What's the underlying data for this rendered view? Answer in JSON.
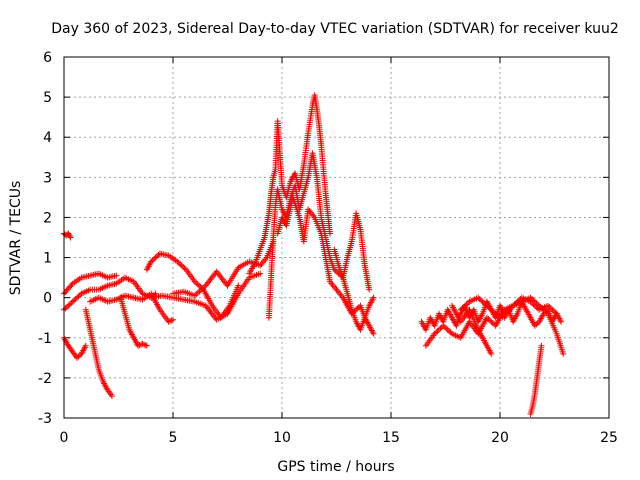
{
  "chart_data": {
    "type": "scatter",
    "title": "Day 360 of 2023, Sidereal Day-to-day VTEC variation (SDTVAR) for receiver kuu2",
    "xlabel": "GPS time / hours",
    "ylabel": "SDTVAR / TECUs",
    "xlim": [
      0,
      25
    ],
    "ylim": [
      -3,
      6
    ],
    "grid": true,
    "marker": "plus",
    "x_ticks": [
      "0",
      "5",
      "10",
      "15",
      "20",
      "25"
    ],
    "y_ticks": [
      "-3",
      "-2",
      "-1",
      "0",
      "1",
      "2",
      "3",
      "4",
      "5",
      "6"
    ],
    "series": [
      {
        "name": "SDTVAR",
        "color": "#ff0000",
        "tracks": [
          {
            "x": [
              0.0,
              0.1,
              0.2,
              0.3
            ],
            "y": [
              1.6,
              1.55,
              1.6,
              1.5
            ]
          },
          {
            "x": [
              0.0,
              0.2,
              0.4,
              0.6,
              0.8,
              1.0
            ],
            "y": [
              -1.0,
              -1.2,
              -1.35,
              -1.5,
              -1.4,
              -1.2
            ]
          },
          {
            "x": [
              0.0,
              0.4,
              0.8,
              1.2,
              1.6,
              2.0,
              2.4
            ],
            "y": [
              0.1,
              0.35,
              0.5,
              0.55,
              0.6,
              0.5,
              0.55
            ]
          },
          {
            "x": [
              0.0,
              0.4,
              0.8,
              1.2,
              1.6,
              2.0,
              2.4,
              2.8,
              3.2,
              3.6,
              4.0,
              4.2
            ],
            "y": [
              -0.3,
              -0.1,
              0.1,
              0.2,
              0.2,
              0.3,
              0.35,
              0.5,
              0.4,
              0.1,
              0.0,
              0.1
            ]
          },
          {
            "x": [
              1.0,
              1.2,
              1.4,
              1.6,
              1.8,
              2.0,
              2.2
            ],
            "y": [
              -0.3,
              -0.8,
              -1.3,
              -1.8,
              -2.1,
              -2.3,
              -2.45
            ]
          },
          {
            "x": [
              1.2,
              1.6,
              2.0,
              2.4,
              2.8,
              3.2,
              3.6,
              4.0,
              4.4,
              4.8,
              5.0
            ],
            "y": [
              -0.1,
              0.0,
              -0.1,
              -0.05,
              0.05,
              0.0,
              -0.05,
              0.1,
              -0.3,
              -0.6,
              -0.55
            ]
          },
          {
            "x": [
              2.6,
              2.8,
              3.0,
              3.2,
              3.4,
              3.6,
              3.8
            ],
            "y": [
              0.0,
              -0.4,
              -0.8,
              -1.0,
              -1.2,
              -1.15,
              -1.2
            ]
          },
          {
            "x": [
              3.8,
              4.0,
              4.4,
              4.8,
              5.2,
              5.6,
              6.0,
              6.4,
              6.8,
              7.2,
              7.6,
              8.0
            ],
            "y": [
              0.7,
              0.9,
              1.1,
              1.05,
              0.9,
              0.7,
              0.4,
              0.2,
              -0.2,
              -0.5,
              -0.2,
              0.3
            ]
          },
          {
            "x": [
              4.0,
              4.5,
              5.0,
              5.5,
              6.0,
              6.5,
              7.0,
              7.5,
              8.0,
              8.5,
              9.0
            ],
            "y": [
              0.0,
              0.05,
              0.0,
              -0.05,
              -0.1,
              -0.2,
              -0.55,
              -0.4,
              0.1,
              0.5,
              0.6
            ]
          },
          {
            "x": [
              5.0,
              5.5,
              6.0,
              6.5,
              7.0,
              7.5,
              8.0,
              8.5,
              9.0,
              9.3,
              9.6
            ],
            "y": [
              0.1,
              0.15,
              0.05,
              0.3,
              0.65,
              0.3,
              0.75,
              0.9,
              0.8,
              1.0,
              1.4
            ]
          },
          {
            "x": [
              8.5,
              8.8,
              9.0,
              9.2,
              9.4,
              9.5,
              9.6,
              9.7,
              9.8,
              9.9,
              10.0,
              10.2,
              10.4,
              10.6,
              10.8,
              11.0,
              11.2,
              11.4,
              11.5,
              11.6,
              11.7,
              11.8,
              11.9,
              12.0,
              12.1,
              12.2
            ],
            "y": [
              0.6,
              0.9,
              1.2,
              1.5,
              2.1,
              2.6,
              3.0,
              3.2,
              4.4,
              3.6,
              2.8,
              2.5,
              2.9,
              3.1,
              2.7,
              3.3,
              4.1,
              4.8,
              5.05,
              4.7,
              4.3,
              3.8,
              3.2,
              2.6,
              2.1,
              1.6
            ]
          },
          {
            "x": [
              9.4,
              9.5,
              9.6,
              9.7,
              9.8,
              10.0,
              10.2,
              10.4,
              10.6,
              10.8,
              11.0,
              11.2,
              11.4,
              11.6,
              11.8,
              12.0,
              12.2,
              12.4,
              12.6,
              12.8,
              13.0,
              13.2,
              13.4,
              13.6,
              13.8,
              14.0,
              14.2
            ],
            "y": [
              -0.5,
              0.5,
              1.5,
              2.3,
              2.7,
              2.2,
              2.0,
              2.5,
              2.8,
              2.2,
              2.6,
              3.0,
              3.6,
              3.0,
              2.0,
              1.5,
              1.0,
              0.7,
              0.6,
              0.5,
              0.1,
              -0.3,
              -0.6,
              -0.8,
              -0.5,
              -0.2,
              0.0
            ]
          },
          {
            "x": [
              9.8,
              10.0,
              10.2,
              10.5,
              10.8,
              11.0,
              11.2,
              11.5,
              11.8,
              12.0,
              12.2,
              12.5,
              12.8,
              13.0,
              13.2,
              13.4,
              13.6,
              13.8,
              14.0,
              14.2
            ],
            "y": [
              1.6,
              2.0,
              1.8,
              2.5,
              2.0,
              1.4,
              2.2,
              2.0,
              1.6,
              1.0,
              0.4,
              0.2,
              0.0,
              -0.2,
              -0.4,
              -0.3,
              -0.2,
              -0.5,
              -0.7,
              -0.9
            ]
          },
          {
            "x": [
              12.4,
              12.6,
              12.8,
              13.0,
              13.2,
              13.4,
              13.6,
              13.8,
              14.0
            ],
            "y": [
              1.2,
              0.8,
              0.5,
              1.0,
              1.4,
              2.1,
              1.7,
              0.8,
              0.2
            ]
          },
          {
            "x": [
              16.4,
              16.6,
              16.8,
              17.0,
              17.2,
              17.4,
              17.6,
              17.8,
              18.0,
              18.2,
              18.4,
              18.6,
              18.8,
              19.0,
              19.2,
              19.4,
              19.6,
              19.8,
              20.0,
              20.2,
              20.4,
              20.6,
              20.8,
              21.0,
              21.2,
              21.4,
              21.6,
              21.8,
              22.0,
              22.2,
              22.4,
              22.6,
              22.8
            ],
            "y": [
              -0.6,
              -0.8,
              -0.5,
              -0.7,
              -0.4,
              -0.6,
              -0.3,
              -0.5,
              -0.7,
              -0.4,
              -0.2,
              -0.5,
              -0.3,
              -0.6,
              -0.4,
              -0.1,
              -0.3,
              -0.5,
              -0.2,
              -0.4,
              -0.3,
              -0.6,
              -0.4,
              -0.1,
              -0.3,
              -0.5,
              -0.7,
              -0.6,
              -0.4,
              -0.3,
              -0.6,
              -0.4,
              -0.6
            ]
          },
          {
            "x": [
              16.6,
              17.0,
              17.4,
              17.8,
              18.2,
              18.6,
              19.0,
              19.4,
              19.8,
              20.2,
              20.6,
              21.0,
              21.4,
              21.8,
              22.2,
              22.6,
              22.9
            ],
            "y": [
              -1.2,
              -0.9,
              -0.7,
              -0.9,
              -1.0,
              -0.6,
              -0.9,
              -0.5,
              -0.7,
              -0.3,
              -0.2,
              -0.1,
              0.0,
              -0.2,
              -0.4,
              -0.9,
              -1.4
            ]
          },
          {
            "x": [
              17.8,
              18.2,
              18.6,
              19.0,
              19.4,
              19.6
            ],
            "y": [
              -0.2,
              -0.6,
              -0.3,
              -0.8,
              -1.2,
              -1.4
            ]
          },
          {
            "x": [
              18.2,
              18.6,
              19.0,
              19.4,
              19.8,
              20.2,
              20.6,
              21.0,
              21.4,
              21.8,
              22.2,
              22.6
            ],
            "y": [
              -0.3,
              -0.1,
              0.0,
              -0.2,
              -0.4,
              -0.5,
              -0.2,
              0.0,
              -0.1,
              -0.3,
              -0.2,
              -0.4
            ]
          },
          {
            "x": [
              21.9,
              21.8,
              21.7,
              21.6,
              21.5,
              21.4
            ],
            "y": [
              -1.2,
              -1.6,
              -2.0,
              -2.4,
              -2.7,
              -2.9
            ]
          }
        ]
      }
    ]
  }
}
